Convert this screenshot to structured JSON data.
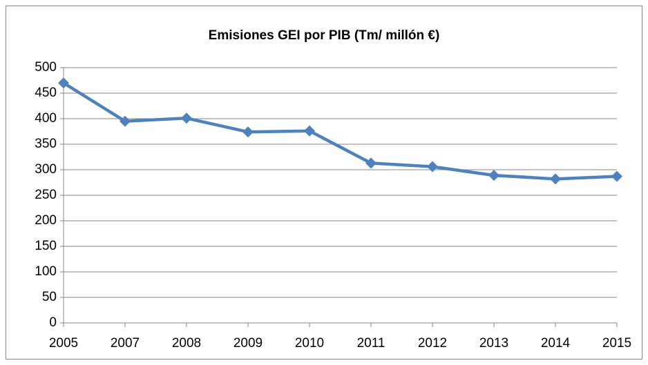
{
  "chart_data": {
    "type": "line",
    "title": "Emisiones GEI por PIB (Tm/ millón €)",
    "categories": [
      "2005",
      "2007",
      "2008",
      "2009",
      "2010",
      "2011",
      "2012",
      "2013",
      "2014",
      "2015"
    ],
    "series": [
      {
        "name": "Emisiones GEI por PIB",
        "color": "#4f81bd",
        "values": [
          470,
          395,
          401,
          374,
          376,
          313,
          306,
          289,
          282,
          287
        ]
      }
    ],
    "ylim": [
      0,
      500
    ],
    "yticks": [
      0,
      50,
      100,
      150,
      200,
      250,
      300,
      350,
      400,
      450,
      500
    ],
    "grid": true
  }
}
